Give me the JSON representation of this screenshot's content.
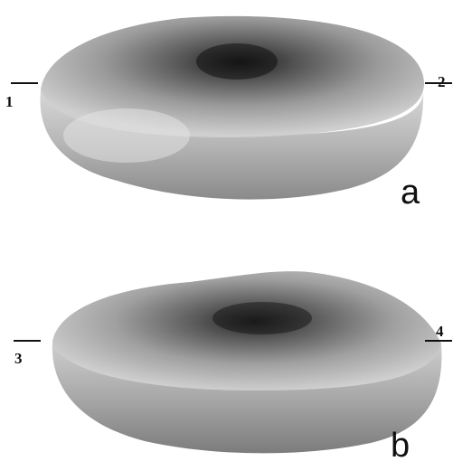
{
  "panels": [
    {
      "label": "a",
      "left_marker": "1",
      "right_marker": "2"
    },
    {
      "label": "b",
      "left_marker": "3",
      "right_marker": "4"
    }
  ]
}
